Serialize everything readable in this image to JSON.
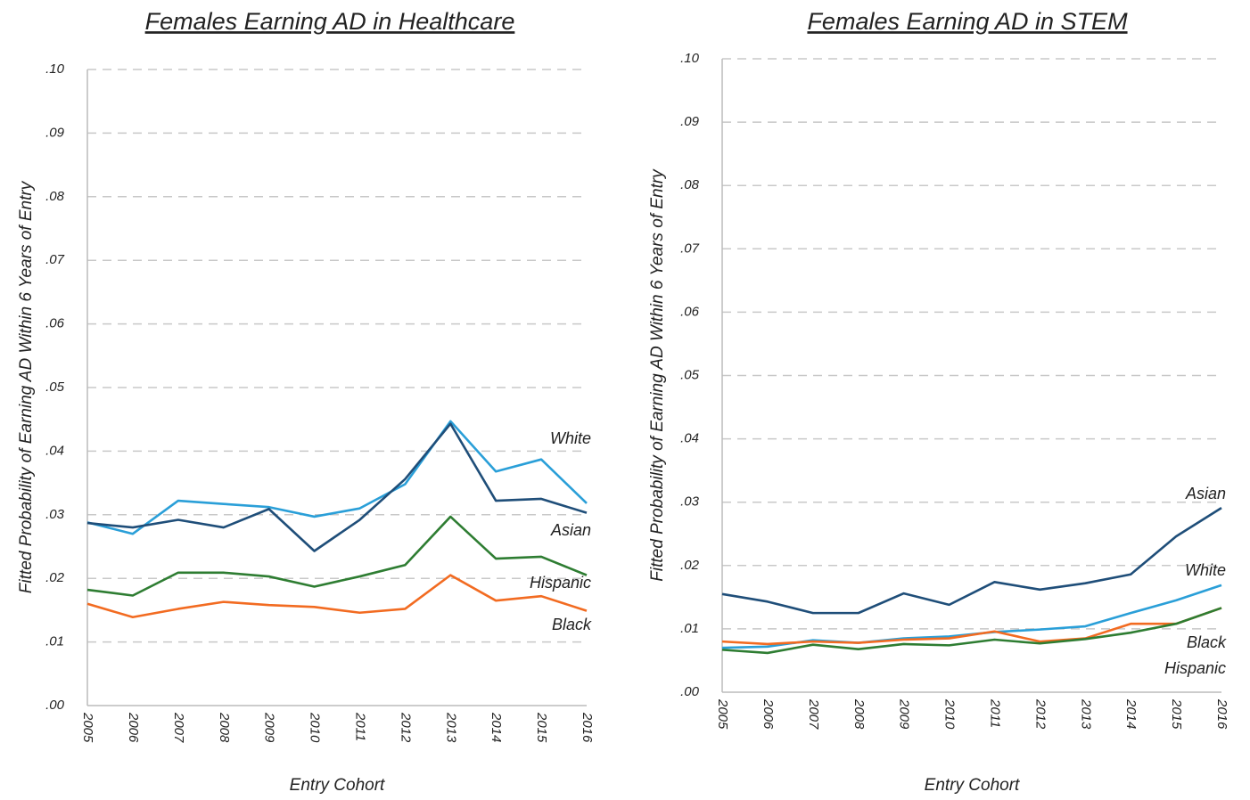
{
  "chart_data": [
    {
      "type": "line",
      "title": "Females Earning AD in Healthcare",
      "y_label": "Fitted Probability of Earning AD Within 6 Years of Entry",
      "x_label": "Entry Cohort",
      "categories": [
        "2005",
        "2006",
        "2007",
        "2008",
        "2009",
        "2010",
        "2011",
        "2012",
        "2013",
        "2014",
        "2015",
        "2016"
      ],
      "ylim": [
        0,
        0.1
      ],
      "yticks": [
        {
          "value": 0,
          "label": ".00"
        },
        {
          "value": 0.01,
          "label": ".01"
        },
        {
          "value": 0.02,
          "label": ".02"
        },
        {
          "value": 0.03,
          "label": ".03"
        },
        {
          "value": 0.04,
          "label": ".04"
        },
        {
          "value": 0.05,
          "label": ".05"
        },
        {
          "value": 0.06,
          "label": ".06"
        },
        {
          "value": 0.07,
          "label": ".07"
        },
        {
          "value": 0.08,
          "label": ".08"
        },
        {
          "value": 0.09,
          "label": ".09"
        },
        {
          "value": 0.1,
          "label": ".10"
        }
      ],
      "grid": true,
      "series": [
        {
          "name": "White",
          "color": "#2a9fd8",
          "values": [
            0.0288,
            0.027,
            0.0322,
            0.0317,
            0.0312,
            0.0297,
            0.031,
            0.0348,
            0.0447,
            0.0368,
            0.0387,
            0.0318
          ]
        },
        {
          "name": "Asian",
          "color": "#1f4e79",
          "values": [
            0.0287,
            0.028,
            0.0292,
            0.028,
            0.0309,
            0.0243,
            0.0292,
            0.0356,
            0.0443,
            0.0322,
            0.0325,
            0.0303
          ]
        },
        {
          "name": "Hispanic",
          "color": "#2e7d32",
          "values": [
            0.0182,
            0.0173,
            0.0209,
            0.0209,
            0.0203,
            0.0187,
            0.0203,
            0.0221,
            0.0297,
            0.0231,
            0.0234,
            0.0205
          ]
        },
        {
          "name": "Black",
          "color": "#f26b21",
          "values": [
            0.016,
            0.0139,
            0.0152,
            0.0163,
            0.0158,
            0.0155,
            0.0146,
            0.0152,
            0.0205,
            0.0165,
            0.0172,
            0.0149
          ]
        }
      ]
    },
    {
      "type": "line",
      "title": "Females Earning AD in STEM",
      "y_label": "Fitted Probability of Earning AD Within 6 Years of Entry",
      "x_label": "Entry Cohort",
      "categories": [
        "2005",
        "2006",
        "2007",
        "2008",
        "2009",
        "2010",
        "2011",
        "2012",
        "2013",
        "2014",
        "2015",
        "2016"
      ],
      "ylim": [
        0,
        0.1
      ],
      "yticks": [
        {
          "value": 0,
          "label": ".00"
        },
        {
          "value": 0.01,
          "label": ".01"
        },
        {
          "value": 0.02,
          "label": ".02"
        },
        {
          "value": 0.03,
          "label": ".03"
        },
        {
          "value": 0.04,
          "label": ".04"
        },
        {
          "value": 0.05,
          "label": ".05"
        },
        {
          "value": 0.06,
          "label": ".06"
        },
        {
          "value": 0.07,
          "label": ".07"
        },
        {
          "value": 0.08,
          "label": ".08"
        },
        {
          "value": 0.09,
          "label": ".09"
        },
        {
          "value": 0.1,
          "label": ".10"
        }
      ],
      "grid": true,
      "series": [
        {
          "name": "Asian",
          "color": "#1f4e79",
          "values": [
            0.0155,
            0.0143,
            0.0125,
            0.0125,
            0.0156,
            0.0138,
            0.0174,
            0.0162,
            0.0172,
            0.0186,
            0.0246,
            0.0291
          ]
        },
        {
          "name": "White",
          "color": "#2a9fd8",
          "values": [
            0.007,
            0.0072,
            0.0082,
            0.0078,
            0.0085,
            0.0088,
            0.0095,
            0.0099,
            0.0104,
            0.0125,
            0.0145,
            0.0169
          ]
        },
        {
          "name": "Black",
          "color": "#f26b21",
          "values": [
            0.008,
            0.0076,
            0.008,
            0.0078,
            0.0083,
            0.0085,
            0.0096,
            0.008,
            0.0085,
            0.0108,
            0.0108,
            0.0133
          ]
        },
        {
          "name": "Hispanic",
          "color": "#2e7d32",
          "values": [
            0.0067,
            0.0062,
            0.0075,
            0.0068,
            0.0076,
            0.0074,
            0.0083,
            0.0077,
            0.0084,
            0.0094,
            0.0108,
            0.0133
          ]
        }
      ]
    }
  ]
}
